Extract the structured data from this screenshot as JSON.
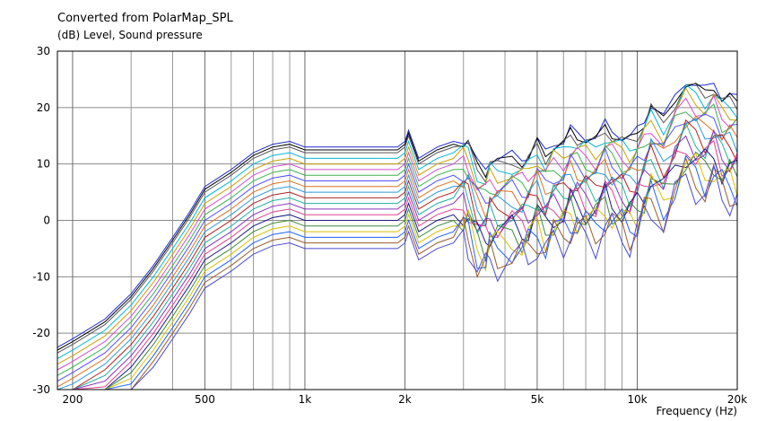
{
  "chart_data": {
    "type": "line",
    "title": "Converted from PolarMap_SPL",
    "subtitle": "(dB)  Level, Sound pressure",
    "xlabel": "Frequency  (Hz)",
    "x_scale": "log",
    "xlim": [
      180,
      20000
    ],
    "ylim": [
      -30,
      30
    ],
    "grid": true,
    "x_tick_labels": [
      {
        "value": 200,
        "label": "200"
      },
      {
        "value": 500,
        "label": "500"
      },
      {
        "value": 1000,
        "label": "1k"
      },
      {
        "value": 2000,
        "label": "2k"
      },
      {
        "value": 5000,
        "label": "5k"
      },
      {
        "value": 10000,
        "label": "10k"
      },
      {
        "value": 20000,
        "label": "20k"
      }
    ],
    "x_minor_grid": [
      300,
      400,
      600,
      700,
      800,
      900,
      3000,
      4000,
      6000,
      7000,
      8000,
      9000
    ],
    "y_ticks": [
      30,
      20,
      10,
      0,
      -10,
      -20,
      -30
    ],
    "x": [
      180,
      200,
      250,
      300,
      350,
      400,
      450,
      500,
      600,
      700,
      800,
      900,
      1000,
      1100,
      1500,
      1900,
      2000,
      2050,
      2200,
      2500,
      2800,
      3000,
      3100,
      3300,
      3500,
      3600,
      3800,
      4200,
      4500,
      4700,
      5000,
      5300,
      5600,
      6000,
      6300,
      6600,
      7000,
      7500,
      8000,
      8400,
      9000,
      9500,
      10000,
      10500,
      11000,
      12000,
      13000,
      14000,
      15000,
      16000,
      17000,
      18000,
      19000,
      20000
    ],
    "base_curve": [
      -22.5,
      -21,
      -17.5,
      -13,
      -8,
      -3,
      1.5,
      6,
      9,
      12,
      13.5,
      14,
      13,
      13,
      13,
      13,
      14,
      16,
      11,
      13,
      14,
      14.5,
      14,
      10,
      9,
      11,
      10.5,
      11.5,
      11,
      11.5,
      14,
      12,
      14,
      14,
      16,
      15.5,
      15,
      14.5,
      17,
      16,
      15,
      14.5,
      16,
      18,
      20.5,
      18,
      22,
      25,
      24,
      23,
      24.5,
      22,
      22,
      21.5
    ],
    "series_offsets": [
      0,
      -0.5,
      -1,
      -2,
      -3,
      -4,
      -5,
      -6,
      -7,
      -8,
      -9,
      -10,
      -11,
      -12,
      -13,
      -14,
      -15,
      -16,
      -17,
      -18
    ],
    "series_colors": [
      "#1f2bd6",
      "#000000",
      "#555555",
      "#00b7d8",
      "#c8a000",
      "#d14fd1",
      "#3bb24a",
      "#5050ff",
      "#e07020",
      "#2d9ad8",
      "#b02020",
      "#20b0a0",
      "#8a30c0",
      "#e04090",
      "#1a1a8a",
      "#3a8a3a",
      "#d8c000",
      "#2060ff",
      "#9a5a2a",
      "#4a4ad0"
    ]
  }
}
